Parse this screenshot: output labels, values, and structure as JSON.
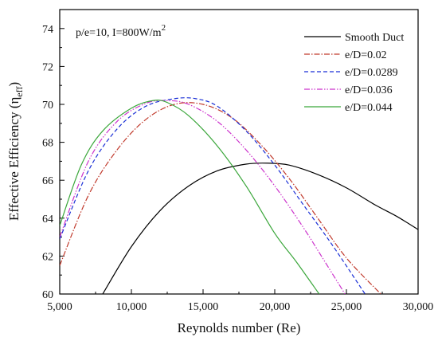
{
  "chart_data": {
    "type": "line",
    "xlabel": "Reynolds number (Re)",
    "ylabel": {
      "prefix": "Effective Efficiency (η",
      "sub": "eff",
      "suffix": ")"
    },
    "xlim": [
      5000,
      30000
    ],
    "ylim": [
      60,
      75
    ],
    "xticks": [
      5000,
      10000,
      15000,
      20000,
      25000,
      30000
    ],
    "xtick_labels": [
      "5,000",
      "10,000",
      "15,000",
      "20,000",
      "25,000",
      "30,000"
    ],
    "yticks": [
      60,
      62,
      64,
      66,
      68,
      70,
      72,
      74
    ],
    "ytick_labels": [
      "60",
      "62",
      "64",
      "66",
      "68",
      "70",
      "72",
      "74"
    ],
    "annotation": {
      "text": "p/e=10, I=800W/m",
      "sup": "2"
    },
    "legend_position": "top-right",
    "grid": false,
    "series": [
      {
        "name": "Smooth Duct",
        "color": "#000000",
        "dash": "solid",
        "x": [
          8000,
          10000,
          12000,
          14000,
          16000,
          18000,
          19500,
          21000,
          23000,
          25000,
          27000,
          28500,
          30000
        ],
        "y": [
          60.0,
          62.5,
          64.4,
          65.7,
          66.5,
          66.85,
          66.9,
          66.8,
          66.3,
          65.6,
          64.7,
          64.1,
          63.4
        ]
      },
      {
        "name": "e/D=0.02",
        "color": "#c0392b",
        "dash": "dashdot",
        "x": [
          5000,
          7000,
          9000,
          11000,
          13000,
          15000,
          17000,
          19000,
          21000,
          23000,
          25000,
          27400
        ],
        "y": [
          61.5,
          65.2,
          67.6,
          69.2,
          70.0,
          70.0,
          69.3,
          67.9,
          66.1,
          64.0,
          61.9,
          60.0
        ]
      },
      {
        "name": "e/D=0.0289",
        "color": "#1a2fd6",
        "dash": "dashed",
        "x": [
          5000,
          7000,
          9000,
          11000,
          13000,
          14500,
          16000,
          18000,
          20000,
          22000,
          24000,
          26300
        ],
        "y": [
          62.9,
          66.5,
          68.7,
          69.9,
          70.3,
          70.3,
          69.9,
          68.6,
          66.8,
          64.7,
          62.6,
          60.0
        ]
      },
      {
        "name": "e/D=0.036",
        "color": "#cc33cc",
        "dash": "dashdotdot",
        "x": [
          5000,
          7000,
          9000,
          11000,
          12500,
          14000,
          16000,
          18000,
          20000,
          22000,
          23500,
          24900
        ],
        "y": [
          63.0,
          67.0,
          69.1,
          70.05,
          70.2,
          70.0,
          69.1,
          67.6,
          65.7,
          63.5,
          61.7,
          60.0
        ]
      },
      {
        "name": "e/D=0.044",
        "color": "#3aa63a",
        "dash": "solid",
        "x": [
          5000,
          6500,
          8000,
          10000,
          11500,
          12500,
          14000,
          16000,
          18000,
          20000,
          21500,
          23100
        ],
        "y": [
          63.6,
          66.8,
          68.6,
          69.8,
          70.2,
          70.1,
          69.4,
          67.8,
          65.7,
          63.2,
          61.7,
          60.0
        ]
      }
    ]
  }
}
